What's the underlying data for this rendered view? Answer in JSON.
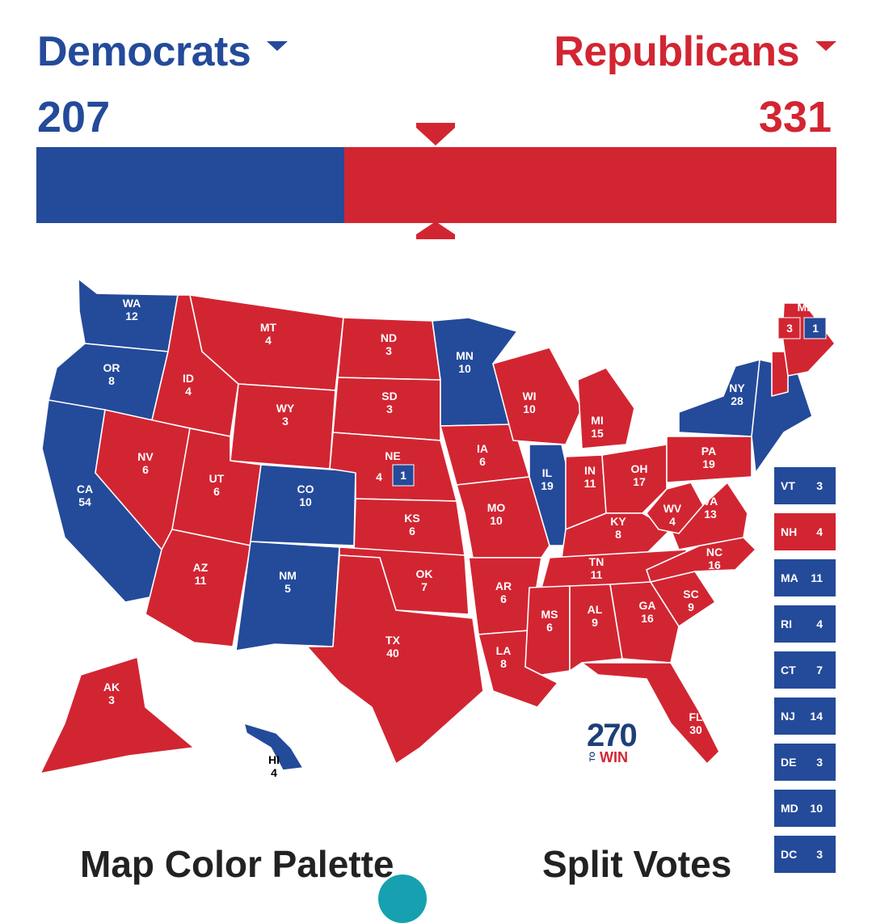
{
  "header": {
    "dem_name": "Democrats",
    "rep_name": "Republicans",
    "dem_votes": "207",
    "rep_votes": "331",
    "dem_share": 0.385
  },
  "colors": {
    "dem": "#244a9a",
    "rep": "#d22532",
    "tossup": "#ffffff"
  },
  "states": {
    "WA": {
      "abbr": "WA",
      "ev": "12"
    },
    "OR": {
      "abbr": "OR",
      "ev": "8"
    },
    "CA": {
      "abbr": "CA",
      "ev": "54"
    },
    "ID": {
      "abbr": "ID",
      "ev": "4"
    },
    "NV": {
      "abbr": "NV",
      "ev": "6"
    },
    "MT": {
      "abbr": "MT",
      "ev": "4"
    },
    "WY": {
      "abbr": "WY",
      "ev": "3"
    },
    "UT": {
      "abbr": "UT",
      "ev": "6"
    },
    "AZ": {
      "abbr": "AZ",
      "ev": "11"
    },
    "CO": {
      "abbr": "CO",
      "ev": "10"
    },
    "NM": {
      "abbr": "NM",
      "ev": "5"
    },
    "ND": {
      "abbr": "ND",
      "ev": "3"
    },
    "SD": {
      "abbr": "SD",
      "ev": "3"
    },
    "NE": {
      "abbr": "NE",
      "ev": "4",
      "split": "1"
    },
    "KS": {
      "abbr": "KS",
      "ev": "6"
    },
    "OK": {
      "abbr": "OK",
      "ev": "7"
    },
    "TX": {
      "abbr": "TX",
      "ev": "40"
    },
    "MN": {
      "abbr": "MN",
      "ev": "10"
    },
    "IA": {
      "abbr": "IA",
      "ev": "6"
    },
    "MO": {
      "abbr": "MO",
      "ev": "10"
    },
    "AR": {
      "abbr": "AR",
      "ev": "6"
    },
    "LA": {
      "abbr": "LA",
      "ev": "8"
    },
    "WI": {
      "abbr": "WI",
      "ev": "10"
    },
    "IL": {
      "abbr": "IL",
      "ev": "19"
    },
    "MI": {
      "abbr": "MI",
      "ev": "15"
    },
    "IN": {
      "abbr": "IN",
      "ev": "11"
    },
    "OH": {
      "abbr": "OH",
      "ev": "17"
    },
    "KY": {
      "abbr": "KY",
      "ev": "8"
    },
    "TN": {
      "abbr": "TN",
      "ev": "11"
    },
    "MS": {
      "abbr": "MS",
      "ev": "6"
    },
    "AL": {
      "abbr": "AL",
      "ev": "9"
    },
    "GA": {
      "abbr": "GA",
      "ev": "16"
    },
    "FL": {
      "abbr": "FL",
      "ev": "30"
    },
    "SC": {
      "abbr": "SC",
      "ev": "9"
    },
    "NC": {
      "abbr": "NC",
      "ev": "16"
    },
    "VA": {
      "abbr": "VA",
      "ev": "13"
    },
    "WV": {
      "abbr": "WV",
      "ev": "4"
    },
    "PA": {
      "abbr": "PA",
      "ev": "19"
    },
    "NY": {
      "abbr": "NY",
      "ev": "28"
    },
    "ME": {
      "abbr": "ME",
      "ev": "3",
      "split": "1"
    },
    "AK": {
      "abbr": "AK",
      "ev": "3"
    },
    "HI": {
      "abbr": "HI",
      "ev": "4"
    }
  },
  "small_states": [
    {
      "abbr": "VT",
      "ev": "3",
      "party": "dem"
    },
    {
      "abbr": "NH",
      "ev": "4",
      "party": "rep"
    },
    {
      "abbr": "MA",
      "ev": "11",
      "party": "dem"
    },
    {
      "abbr": "RI",
      "ev": "4",
      "party": "dem"
    },
    {
      "abbr": "CT",
      "ev": "7",
      "party": "dem"
    },
    {
      "abbr": "NJ",
      "ev": "14",
      "party": "dem"
    },
    {
      "abbr": "DE",
      "ev": "3",
      "party": "dem"
    },
    {
      "abbr": "MD",
      "ev": "10",
      "party": "dem"
    },
    {
      "abbr": "DC",
      "ev": "3",
      "party": "dem"
    }
  ],
  "logo": {
    "number": "270",
    "to": "TO",
    "win": "WIN"
  },
  "sections": {
    "palette": "Map Color Palette",
    "split": "Split Votes"
  }
}
